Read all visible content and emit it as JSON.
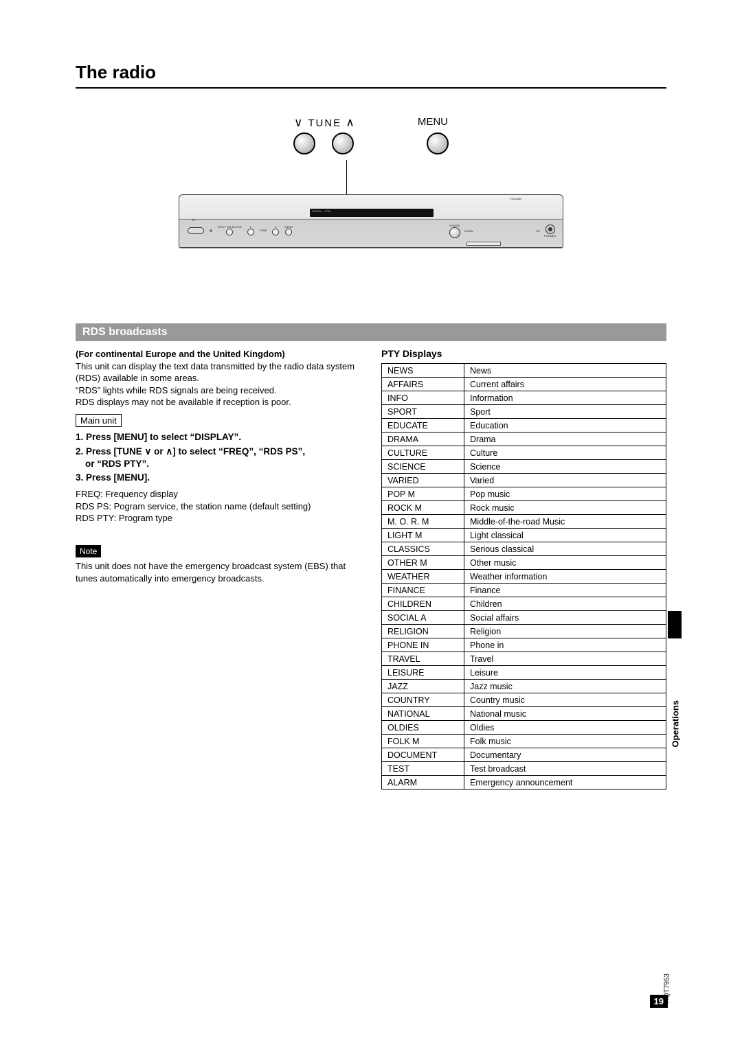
{
  "page_title": "The radio",
  "diagram": {
    "tune_label_pre": "TUNE",
    "menu_label": "MENU",
    "device": {
      "top_right_label": "VOLUME",
      "display_content": "DIGITAL    PCM",
      "labels": {
        "bass": "H.BASS",
        "down": "DOWN",
        "up": "UP",
        "phones": "PHONES",
        "input_sel": "INPUT SELECTOR",
        "tune": "TUNE",
        "menu": "MENU",
        "power": "⏻ / I"
      }
    }
  },
  "section_bar": "RDS broadcasts",
  "left": {
    "subhead": "(For continental Europe and the United Kingdom)",
    "p1": "This unit can display the text data transmitted by the radio data system (RDS) available in some areas.",
    "p2": "“RDS” lights while RDS signals are being received.",
    "p3": "RDS displays may not be available if reception is poor.",
    "main_unit_label": "Main unit",
    "steps": [
      "1. Press [MENU] to select “DISPLAY”.",
      "2. Press [TUNE ∨ or ∧] to select “FREQ”, “RDS PS”,",
      "or “RDS PTY”.",
      "3. Press [MENU]."
    ],
    "defs": [
      "FREQ: Frequency display",
      "RDS PS: Pogram service, the station name (default setting)",
      "RDS PTY: Program type"
    ],
    "note_label": "Note",
    "note_text": "This unit does not have the emergency broadcast system (EBS) that tunes automatically into emergency broadcasts."
  },
  "right": {
    "pty_title": "PTY Displays",
    "rows": [
      [
        "NEWS",
        "News"
      ],
      [
        "AFFAIRS",
        "Current affairs"
      ],
      [
        "INFO",
        "Information"
      ],
      [
        "SPORT",
        "Sport"
      ],
      [
        "EDUCATE",
        "Education"
      ],
      [
        "DRAMA",
        "Drama"
      ],
      [
        "CULTURE",
        "Culture"
      ],
      [
        "SCIENCE",
        "Science"
      ],
      [
        "VARIED",
        "Varied"
      ],
      [
        "POP M",
        "Pop music"
      ],
      [
        "ROCK M",
        "Rock music"
      ],
      [
        "M. O. R. M",
        "Middle-of-the-road Music"
      ],
      [
        "LIGHT M",
        "Light classical"
      ],
      [
        "CLASSICS",
        "Serious classical"
      ],
      [
        "OTHER M",
        "Other music"
      ],
      [
        "WEATHER",
        "Weather information"
      ],
      [
        "FINANCE",
        "Finance"
      ],
      [
        "CHILDREN",
        "Children"
      ],
      [
        "SOCIAL A",
        "Social affairs"
      ],
      [
        "RELIGION",
        "Religion"
      ],
      [
        "PHONE IN",
        "Phone in"
      ],
      [
        "TRAVEL",
        "Travel"
      ],
      [
        "LEISURE",
        "Leisure"
      ],
      [
        "JAZZ",
        "Jazz music"
      ],
      [
        "COUNTRY",
        "Country music"
      ],
      [
        "NATIONAL",
        "National music"
      ],
      [
        "OLDIES",
        "Oldies"
      ],
      [
        "FOLK M",
        "Folk music"
      ],
      [
        "DOCUMENT",
        "Documentary"
      ],
      [
        "TEST",
        "Test broadcast"
      ],
      [
        "ALARM",
        "Emergency announcement"
      ]
    ]
  },
  "side_tab": "Operations",
  "footer": {
    "doc_code": "RQT7953",
    "page_num": "19"
  }
}
